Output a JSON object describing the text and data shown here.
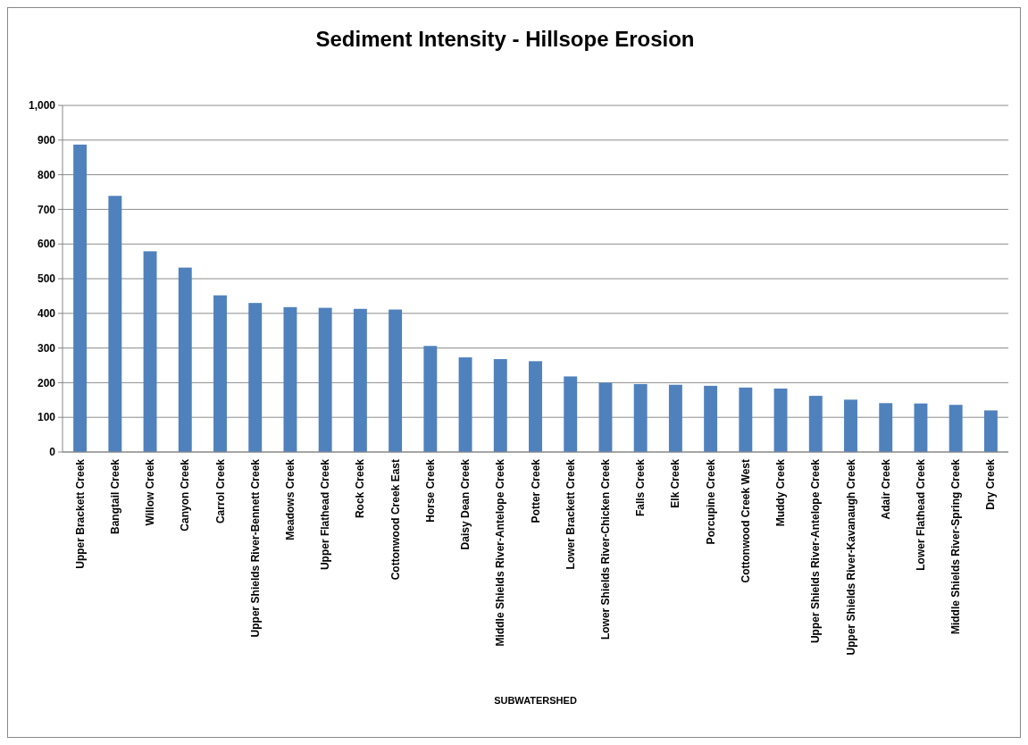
{
  "chart_data": {
    "type": "bar",
    "title": "Sediment Intensity - Hillsope Erosion",
    "xlabel": "SUBWATERSHED",
    "categories": [
      "Upper Brackett Creek",
      "Bangtail Creek",
      "Willow Creek",
      "Canyon Creek",
      "Carrol Creek",
      "Upper Shields River-Bennett Creek",
      "Meadows Creek",
      "Upper Flathead Creek",
      "Rock Creek",
      "Cottonwood Creek East",
      "Horse Creek",
      "Daisy Dean Creek",
      "Middle Shields River-Antelope Creek",
      "Potter Creek",
      "Lower Brackett Creek",
      "Lower Shields River-Chicken Creek",
      "Falls Creek",
      "Elk Creek",
      "Porcupine Creek",
      "Cottonwood Creek West",
      "Muddy Creek",
      "Upper Shields River-Antelope Creek",
      "Upper Shields River-Kavanaugh Creek",
      "Adair Creek",
      "Lower Flathead Creek",
      "Middle Shields River-Spring Creek",
      "Dry Creek"
    ],
    "values": [
      887,
      739,
      579,
      532,
      452,
      430,
      418,
      416,
      413,
      411,
      306,
      273,
      268,
      262,
      218,
      200,
      196,
      194,
      191,
      186,
      183,
      162,
      151,
      141,
      140,
      136,
      120
    ],
    "color": "#4f81bd",
    "ylim": [
      0,
      1000
    ],
    "yticks": [
      0,
      100,
      200,
      300,
      400,
      500,
      600,
      700,
      800,
      {
        "value": 900,
        "label": "900"
      },
      {
        "value": 1000,
        "label": "1,000"
      }
    ],
    "grid": "y"
  }
}
